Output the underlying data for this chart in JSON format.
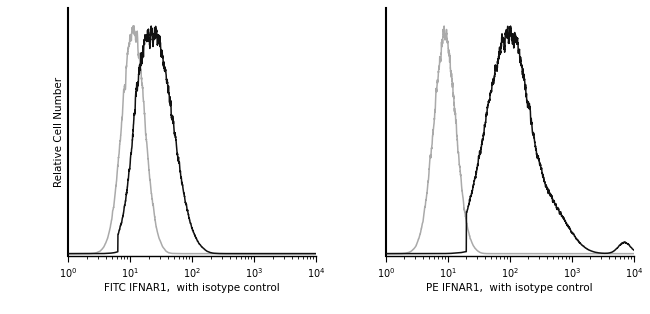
{
  "panel1_xlabel": "FITC IFNAR1,  with isotype control",
  "panel2_xlabel": "PE IFNAR1,  with isotype control",
  "ylabel": "Relative Cell Number",
  "xlim": [
    1,
    10000
  ],
  "gray_color": "#aaaaaa",
  "black_color": "#111111",
  "bg_color": "#ffffff",
  "linewidth": 1.1
}
